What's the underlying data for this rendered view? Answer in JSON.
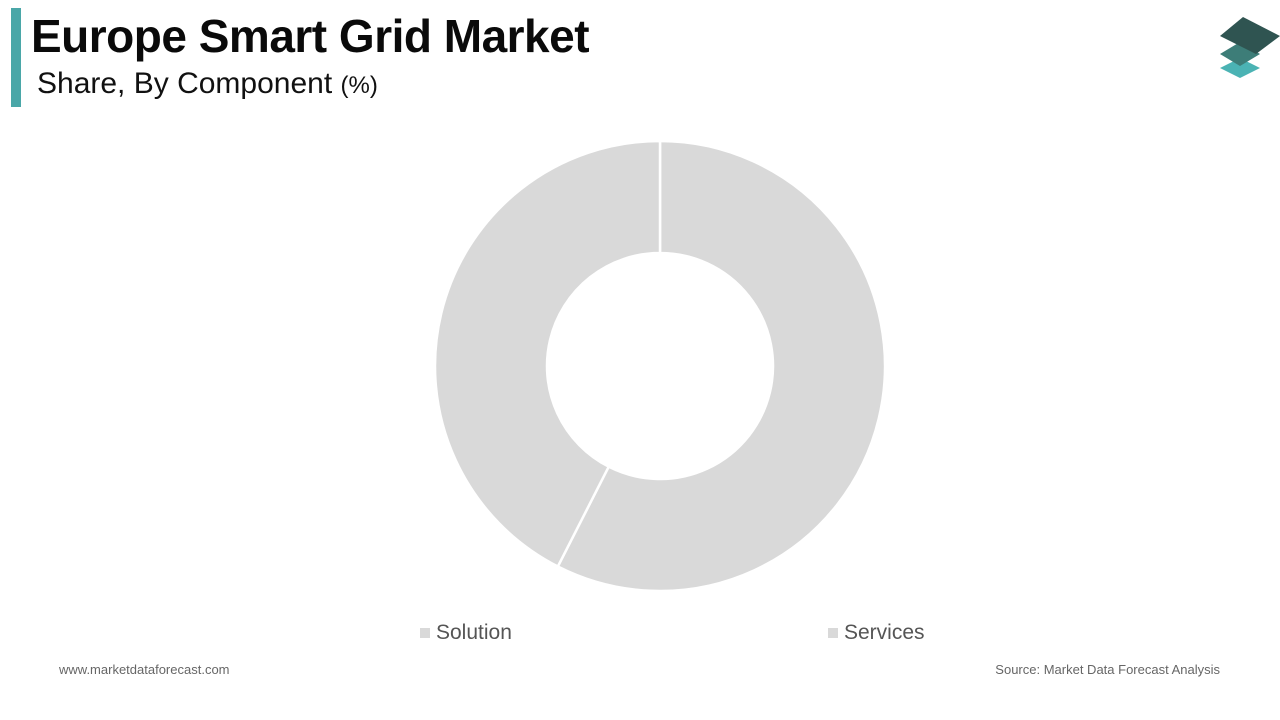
{
  "header": {
    "title": "Europe Smart Grid Market",
    "subtitle": "Share, By Component",
    "subtitle_unit": "(%)"
  },
  "colors": {
    "accent_bar": "#4aa7a8",
    "logo_top": "#2f5451",
    "logo_mid": "#3d7d78",
    "logo_bottom": "#4bb3b4"
  },
  "chart_data": {
    "type": "pie",
    "donut": true,
    "title": "Europe Smart Grid Market",
    "subtitle": "Share, By Component (%)",
    "slices": [
      {
        "label": "Solution",
        "value": 57.5,
        "color": "#d9d9d9"
      },
      {
        "label": "Services",
        "value": 42.5,
        "color": "#d9d9d9"
      }
    ],
    "legend_position": "bottom"
  },
  "footer": {
    "website": "www.marketdataforecast.com",
    "source": "Source: Market Data Forecast Analysis"
  }
}
